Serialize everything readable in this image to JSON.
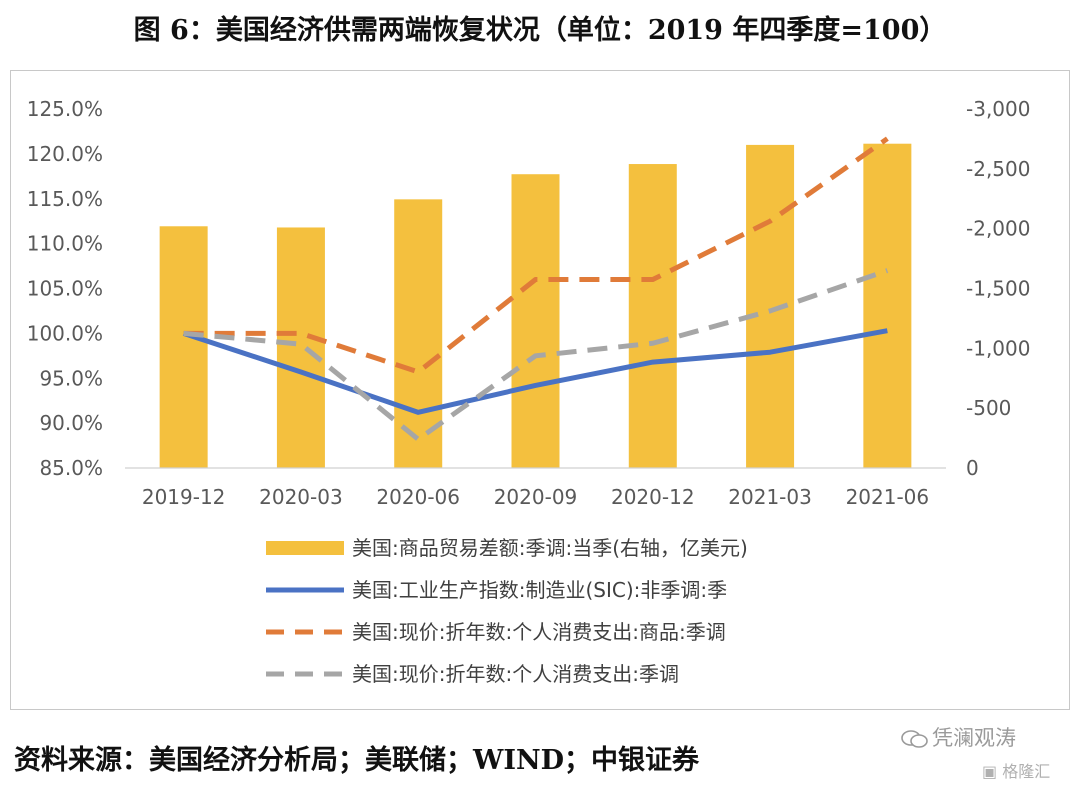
{
  "header": {
    "title": "图 6：美国经济供需两端恢复状况（单位：2019 年四季度=100）"
  },
  "footer": {
    "source": "资料来源：美国经济分析局；美联储；WIND；中银证券",
    "watermark": "凭澜观涛",
    "watermark_brand": "格隆汇"
  },
  "chart_data": {
    "type": "bar",
    "categories": [
      "2019-12",
      "2020-03",
      "2020-06",
      "2020-09",
      "2020-12",
      "2021-03",
      "2021-06"
    ],
    "y_left": {
      "ylim": [
        85,
        125
      ],
      "ticks": [
        85,
        90,
        95,
        100,
        105,
        110,
        115,
        120,
        125
      ],
      "tick_labels": [
        "85.0%",
        "90.0%",
        "95.0%",
        "100.0%",
        "105.0%",
        "110.0%",
        "115.0%",
        "120.0%",
        "125.0%"
      ]
    },
    "y_right": {
      "ylim": [
        0,
        -3000
      ],
      "ticks": [
        0,
        -500,
        -1000,
        -1500,
        -2000,
        -2500,
        -3000
      ],
      "tick_labels": [
        "0",
        "-500",
        "-1,000",
        "-1,500",
        "-2,000",
        "-2,500",
        "-3,000"
      ]
    },
    "series": [
      {
        "name": "美国:商品贸易差额:季调:当季(右轴，亿美元)",
        "kind": "bar",
        "axis": "right",
        "color": "#f4c03e",
        "values": [
          -2020,
          -2010,
          -2245,
          -2455,
          -2540,
          -2700,
          -2710
        ]
      },
      {
        "name": "美国:工业生产指数:制造业(SIC):非季调:季",
        "kind": "line",
        "axis": "left",
        "color": "#4a72c4",
        "dash": "solid",
        "values": [
          100.0,
          95.7,
          91.2,
          94.2,
          96.8,
          97.9,
          100.3
        ]
      },
      {
        "name": "美国:现价:折年数:个人消费支出:商品:季调",
        "kind": "line",
        "axis": "left",
        "color": "#e07b39",
        "dash": "dashed",
        "values": [
          100.0,
          100.0,
          95.7,
          106.0,
          106.0,
          112.5,
          121.7
        ]
      },
      {
        "name": "美国:现价:折年数:个人消费支出:季调",
        "kind": "line",
        "axis": "left",
        "color": "#a6a6a6",
        "dash": "dashed",
        "values": [
          100.0,
          98.8,
          88.2,
          97.5,
          98.9,
          102.5,
          107.0
        ]
      }
    ],
    "grid": false,
    "legend_position": "bottom"
  }
}
